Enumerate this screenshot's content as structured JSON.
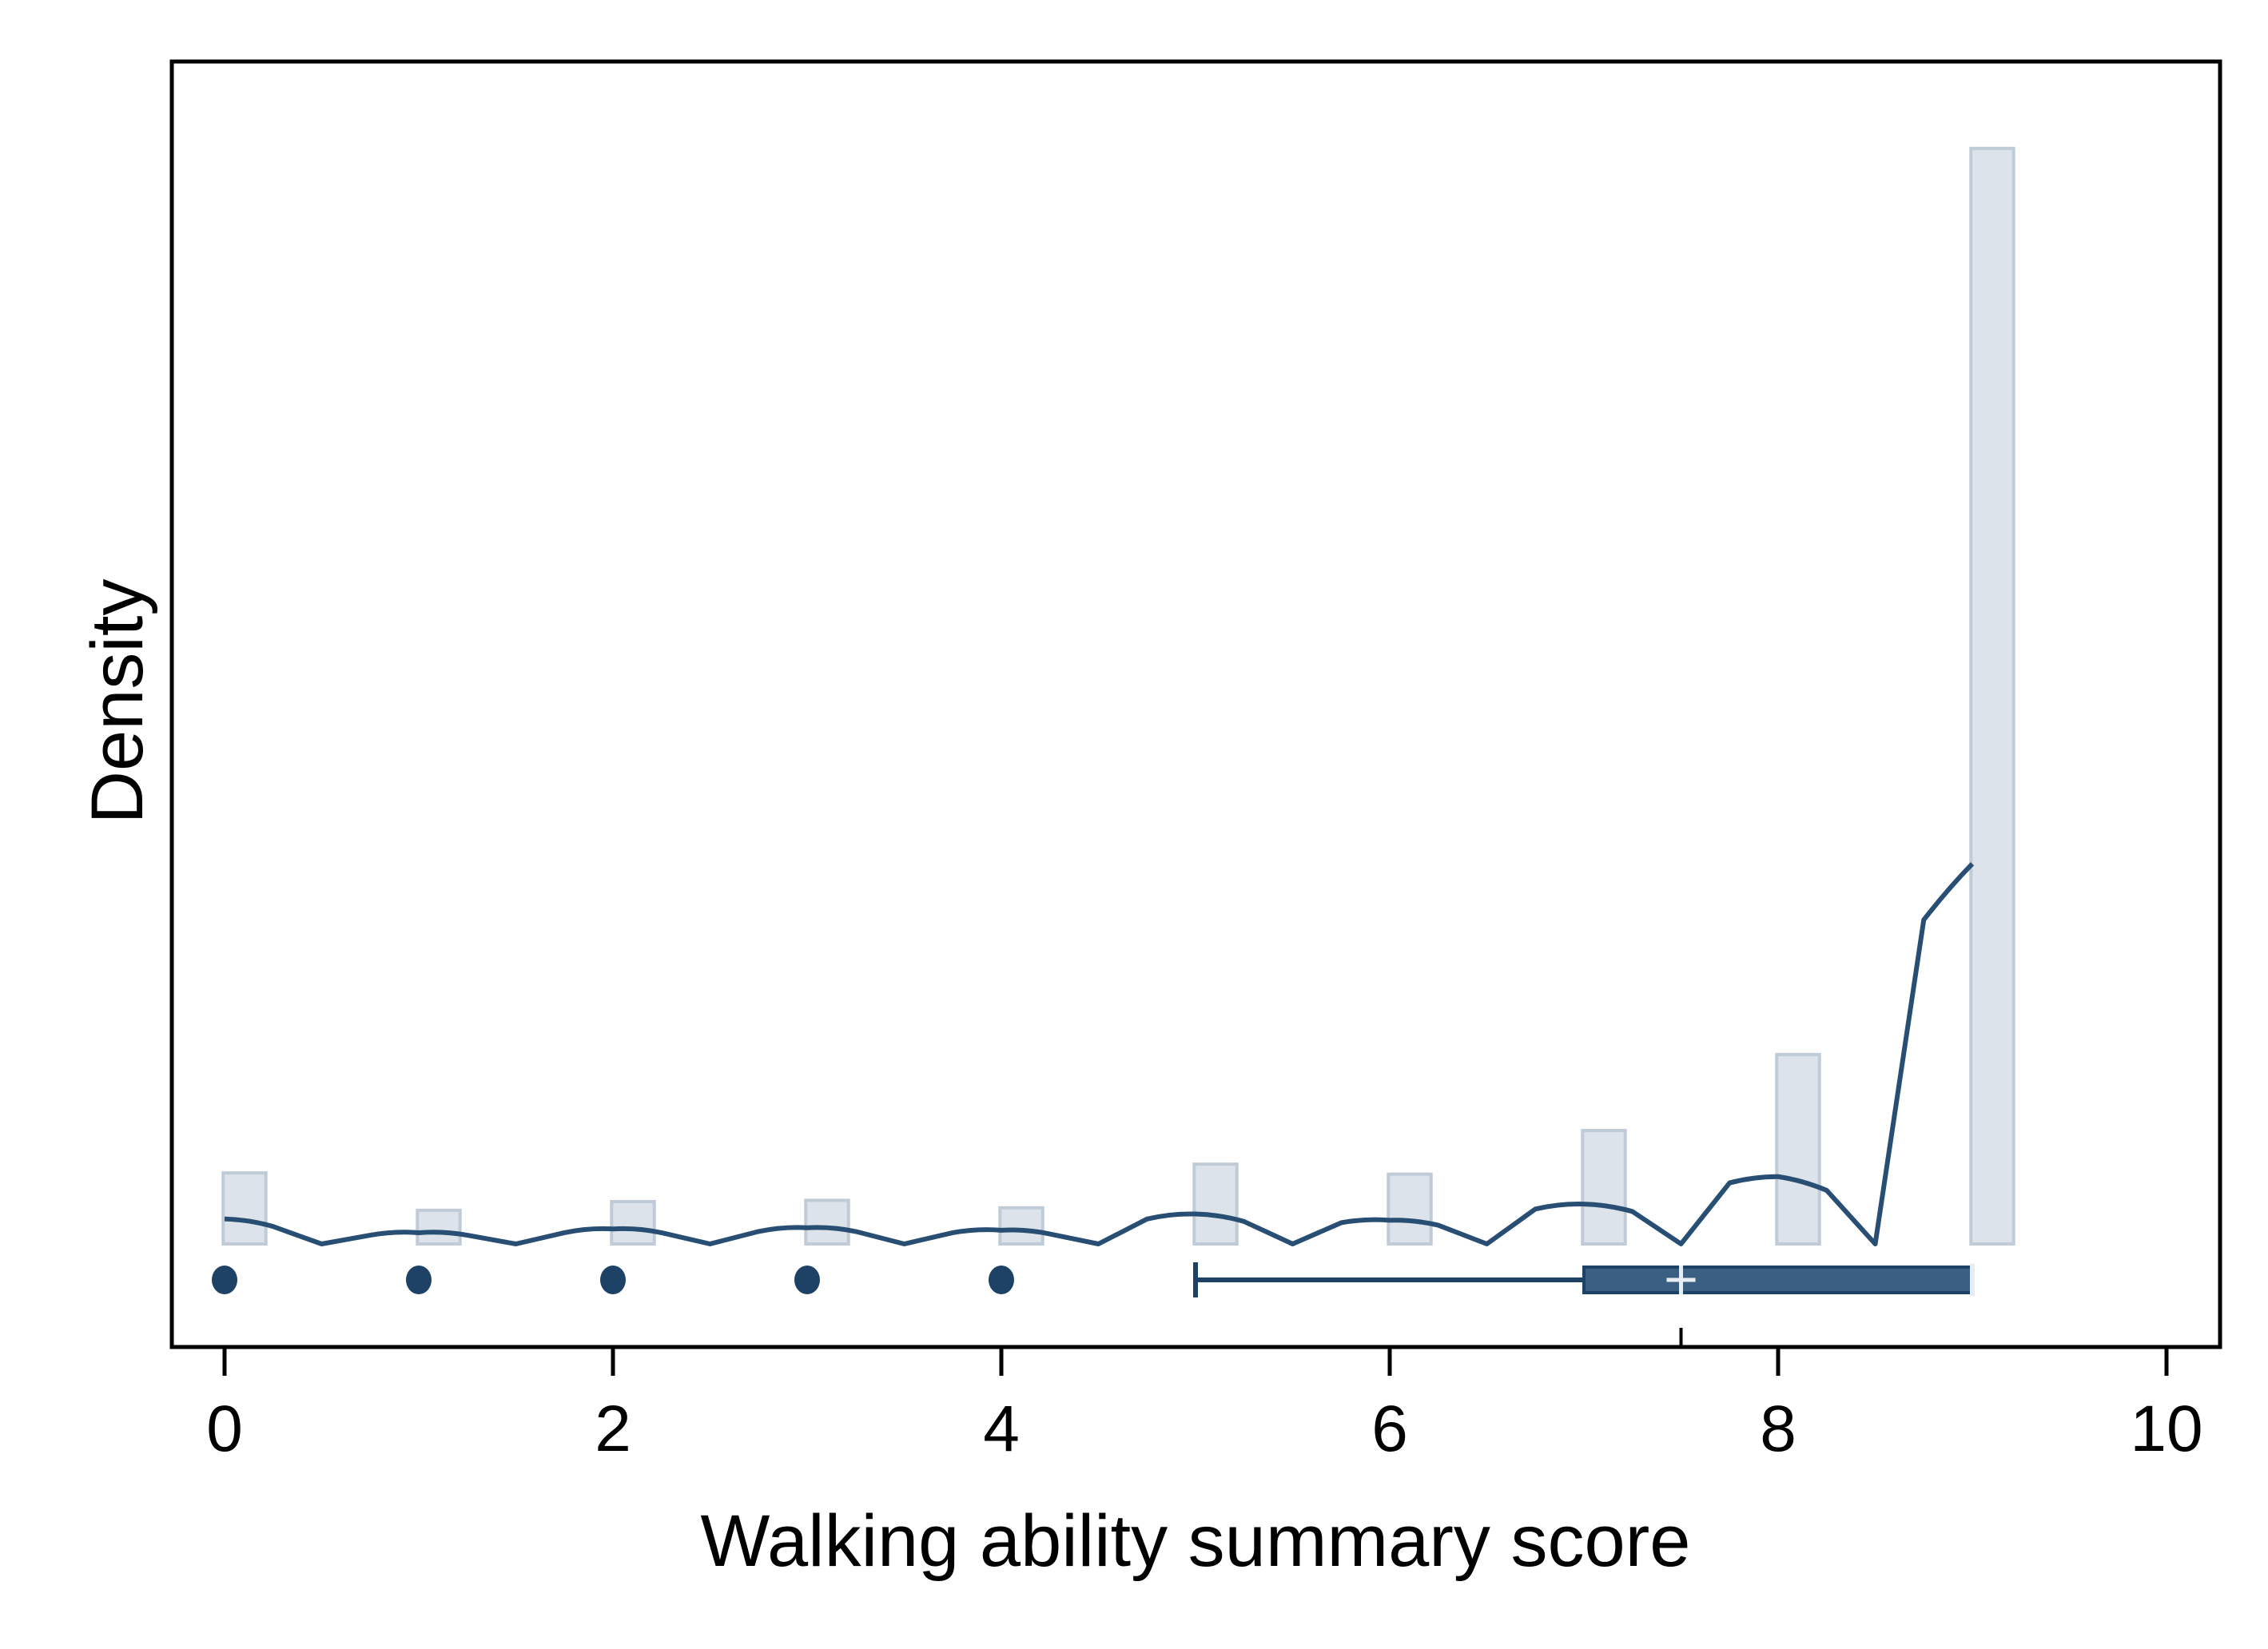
{
  "chart_data": {
    "type": "bar",
    "title": "",
    "xlabel": "Walking ability summary score",
    "ylabel": "Density",
    "xlim": [
      -0.25,
      10.25
    ],
    "ylim": [
      0,
      1
    ],
    "grid": false,
    "x_ticks": [
      {
        "value": 0,
        "label": "0"
      },
      {
        "value": 2,
        "label": "2"
      },
      {
        "value": 4,
        "label": "4"
      },
      {
        "value": 6,
        "label": "6"
      },
      {
        "value": 8,
        "label": "8"
      },
      {
        "value": 10,
        "label": "10"
      }
    ],
    "histogram": {
      "bar_width": 0.22,
      "bars": [
        {
          "x": 0,
          "height": 0.057
        },
        {
          "x": 1,
          "height": 0.027
        },
        {
          "x": 2,
          "height": 0.034
        },
        {
          "x": 3,
          "height": 0.035
        },
        {
          "x": 4,
          "height": 0.029
        },
        {
          "x": 5,
          "height": 0.064
        },
        {
          "x": 6,
          "height": 0.056
        },
        {
          "x": 7,
          "height": 0.091
        },
        {
          "x": 8,
          "height": 0.152
        },
        {
          "x": 9,
          "height": 0.879
        }
      ]
    },
    "density_curve": {
      "x": [
        0,
        0.25,
        0.5,
        0.75,
        1,
        1.25,
        1.5,
        1.75,
        2,
        2.25,
        2.5,
        2.75,
        3,
        3.25,
        3.5,
        3.75,
        4,
        4.25,
        4.5,
        4.75,
        5,
        5.25,
        5.5,
        5.75,
        6,
        6.25,
        6.5,
        6.75,
        7,
        7.25,
        7.5,
        7.75,
        8,
        8.25,
        8.5,
        8.75,
        9
      ],
      "y": [
        0.02,
        0.014,
        0.0,
        0.007,
        0.009,
        0.007,
        0.0,
        0.009,
        0.012,
        0.009,
        0.0,
        0.01,
        0.013,
        0.01,
        0.0,
        0.009,
        0.011,
        0.008,
        0.0,
        0.02,
        0.024,
        0.018,
        0.0,
        0.017,
        0.019,
        0.015,
        0.0,
        0.028,
        0.032,
        0.026,
        0.0,
        0.049,
        0.054,
        0.043,
        0.0,
        0.26,
        0.305
      ]
    },
    "boxplot": {
      "whisker_low": 5,
      "q1": 7,
      "median": 9,
      "q3": 9,
      "whisker_high": 9,
      "mean": 7.5,
      "outliers": [
        0,
        1,
        2,
        3,
        4
      ]
    },
    "colors": {
      "bar_fill": "#dce3ea",
      "bar_stroke": "#bfcbd6",
      "curve": "#284f73",
      "box": "#3b5f82",
      "box_stroke": "#1d4266",
      "mean_marker": "#e8edf2",
      "axis": "#000000"
    }
  }
}
